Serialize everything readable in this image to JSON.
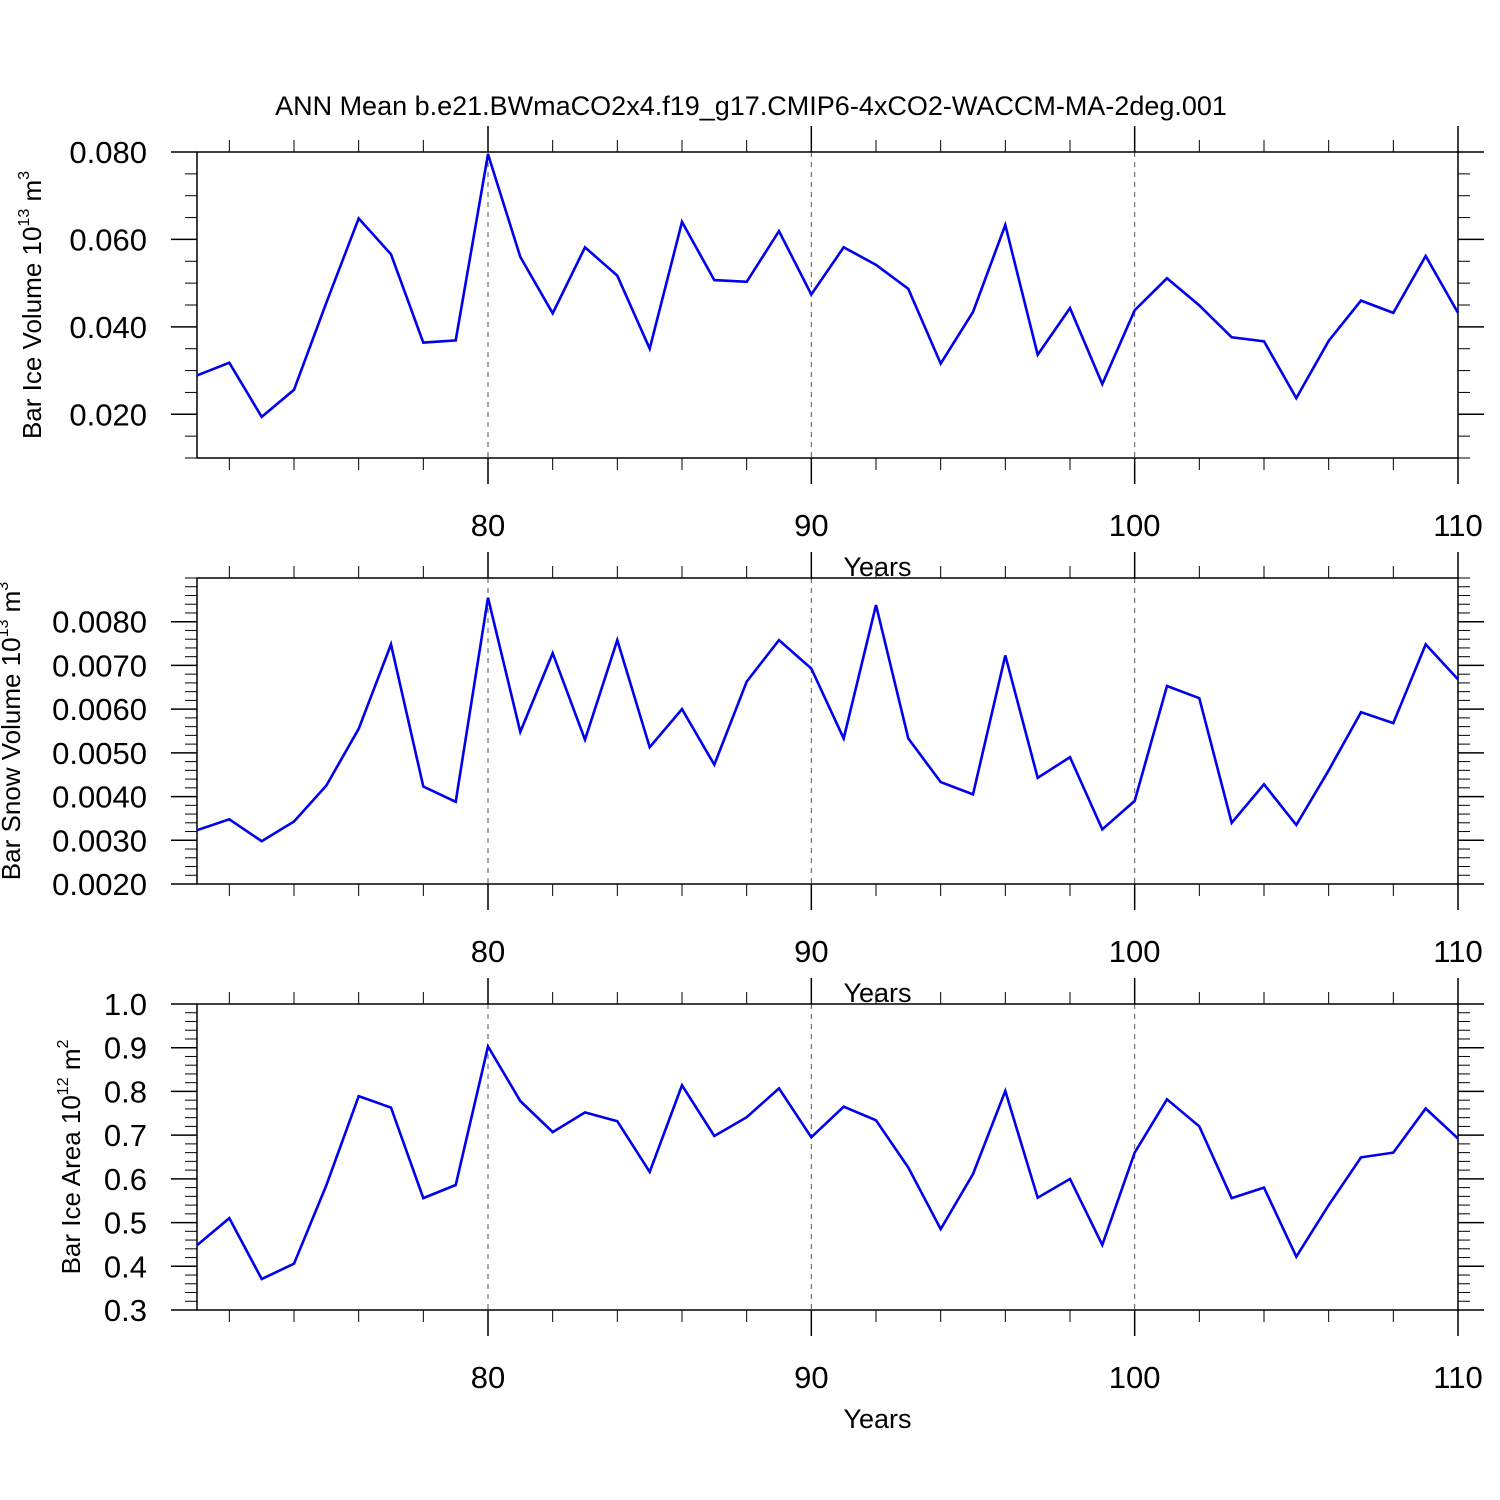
{
  "title": "ANN Mean b.e21.BWmaCO2x4.f19_g17.CMIP6-4xCO2-WACCM-MA-2deg.001",
  "colors": {
    "line": "#0000ee",
    "axis": "#000000",
    "gridline": "#555555"
  },
  "chart_data": [
    {
      "type": "line",
      "xlabel": "Years",
      "ylabel": {
        "prefix": "Bar Ice Volume 10",
        "exp": "13",
        "unit": " m",
        "unit_exp": "3"
      },
      "xlim": [
        71,
        110
      ],
      "ylim": [
        0.01,
        0.08
      ],
      "xticks": [
        80,
        90,
        100,
        110
      ],
      "xtick_labels": [
        "80",
        "90",
        "100",
        "110"
      ],
      "xminor_step": 2,
      "yticks": [
        0.02,
        0.04,
        0.06,
        0.08
      ],
      "ytick_labels": [
        "0.020",
        "0.040",
        "0.060",
        "0.080"
      ],
      "yminor_step": 0.005,
      "gridlines_x": [
        80,
        90,
        100
      ],
      "x": [
        71,
        72,
        73,
        74,
        75,
        76,
        77,
        78,
        79,
        80,
        81,
        82,
        83,
        84,
        85,
        86,
        87,
        88,
        89,
        90,
        91,
        92,
        93,
        94,
        95,
        96,
        97,
        98,
        99,
        100,
        101,
        102,
        103,
        104,
        105,
        106,
        107,
        108,
        109,
        110
      ],
      "values": [
        0.0289,
        0.0318,
        0.0194,
        0.0256,
        0.0455,
        0.0648,
        0.0566,
        0.0364,
        0.0369,
        0.0795,
        0.056,
        0.0431,
        0.0582,
        0.0517,
        0.035,
        0.064,
        0.0507,
        0.0503,
        0.0619,
        0.0474,
        0.0582,
        0.0542,
        0.0487,
        0.0316,
        0.0434,
        0.0633,
        0.0336,
        0.0443,
        0.0269,
        0.0438,
        0.0511,
        0.0449,
        0.0376,
        0.0367,
        0.0237,
        0.0368,
        0.046,
        0.0432,
        0.0562,
        0.0432
      ]
    },
    {
      "type": "line",
      "xlabel": "Years",
      "ylabel": {
        "prefix": "Bar Snow Volume 10",
        "exp": "13",
        "unit": " m",
        "unit_exp": "3"
      },
      "xlim": [
        71,
        110
      ],
      "ylim": [
        0.002,
        0.009
      ],
      "xticks": [
        80,
        90,
        100,
        110
      ],
      "xtick_labels": [
        "80",
        "90",
        "100",
        "110"
      ],
      "xminor_step": 2,
      "yticks": [
        0.002,
        0.003,
        0.004,
        0.005,
        0.006,
        0.007,
        0.008
      ],
      "ytick_labels": [
        "0.0020",
        "0.0030",
        "0.0040",
        "0.0050",
        "0.0060",
        "0.0070",
        "0.0080"
      ],
      "yminor_step": 0.0002,
      "gridlines_x": [
        80,
        90,
        100
      ],
      "x": [
        71,
        72,
        73,
        74,
        75,
        76,
        77,
        78,
        79,
        80,
        81,
        82,
        83,
        84,
        85,
        86,
        87,
        88,
        89,
        90,
        91,
        92,
        93,
        94,
        95,
        96,
        97,
        98,
        99,
        100,
        101,
        102,
        103,
        104,
        105,
        106,
        107,
        108,
        109,
        110
      ],
      "values": [
        0.00323,
        0.00348,
        0.00298,
        0.00343,
        0.00425,
        0.00555,
        0.00748,
        0.00423,
        0.00388,
        0.00855,
        0.00548,
        0.00728,
        0.0053,
        0.00758,
        0.00513,
        0.006,
        0.00473,
        0.00663,
        0.00758,
        0.00693,
        0.00533,
        0.00838,
        0.00533,
        0.00433,
        0.00405,
        0.00723,
        0.00443,
        0.0049,
        0.00325,
        0.0039,
        0.00653,
        0.00625,
        0.0034,
        0.00428,
        0.00335,
        0.0046,
        0.00593,
        0.00568,
        0.00748,
        0.00668
      ]
    },
    {
      "type": "line",
      "xlabel": "Years",
      "ylabel": {
        "prefix": "Bar Ice Area 10",
        "exp": "12",
        "unit": " m",
        "unit_exp": "2"
      },
      "xlim": [
        71,
        110
      ],
      "ylim": [
        0.3,
        1.0
      ],
      "xticks": [
        80,
        90,
        100,
        110
      ],
      "xtick_labels": [
        "80",
        "90",
        "100",
        "110"
      ],
      "xminor_step": 2,
      "yticks": [
        0.3,
        0.4,
        0.5,
        0.6,
        0.7,
        0.8,
        0.9,
        1.0
      ],
      "ytick_labels": [
        "0.3",
        "0.4",
        "0.5",
        "0.6",
        "0.7",
        "0.8",
        "0.9",
        "1.0"
      ],
      "yminor_step": 0.02,
      "gridlines_x": [
        80,
        90,
        100
      ],
      "x": [
        71,
        72,
        73,
        74,
        75,
        76,
        77,
        78,
        79,
        80,
        81,
        82,
        83,
        84,
        85,
        86,
        87,
        88,
        89,
        90,
        91,
        92,
        93,
        94,
        95,
        96,
        97,
        98,
        99,
        100,
        101,
        102,
        103,
        104,
        105,
        106,
        107,
        108,
        109,
        110
      ],
      "values": [
        0.448,
        0.51,
        0.371,
        0.406,
        0.585,
        0.789,
        0.763,
        0.556,
        0.586,
        0.903,
        0.778,
        0.707,
        0.752,
        0.732,
        0.616,
        0.814,
        0.698,
        0.741,
        0.807,
        0.695,
        0.765,
        0.734,
        0.626,
        0.485,
        0.611,
        0.801,
        0.557,
        0.6,
        0.449,
        0.66,
        0.782,
        0.72,
        0.556,
        0.58,
        0.422,
        0.54,
        0.649,
        0.66,
        0.761,
        0.692
      ]
    }
  ]
}
